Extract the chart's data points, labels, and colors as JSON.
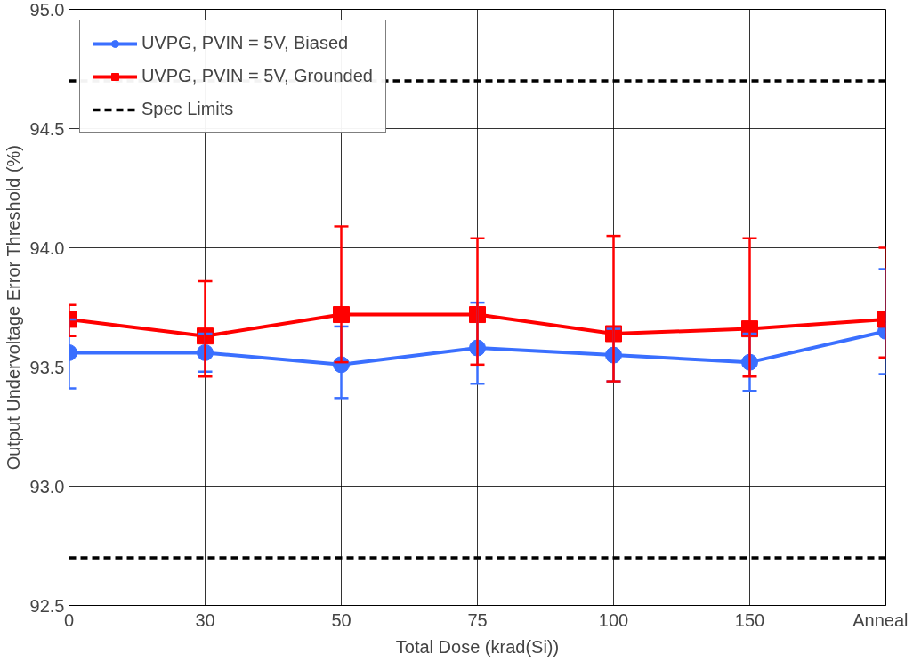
{
  "chart_data": {
    "type": "line",
    "xlabel": "Total Dose (krad(Si))",
    "ylabel": "Output Undervoltage Error Threshold (%)",
    "categories": [
      "0",
      "30",
      "50",
      "75",
      "100",
      "150",
      "Anneal"
    ],
    "series": [
      {
        "name": "UVPG, PVIN = 5V, Biased",
        "color": "#3a6fff",
        "marker": "circle",
        "values": [
          93.56,
          93.56,
          93.51,
          93.58,
          93.55,
          93.52,
          93.65
        ],
        "errors": [
          [
            93.41,
            93.7
          ],
          [
            93.48,
            93.64
          ],
          [
            93.37,
            93.67
          ],
          [
            93.43,
            93.77
          ],
          [
            93.44,
            93.66
          ],
          [
            93.4,
            93.64
          ],
          [
            93.47,
            93.91
          ]
        ]
      },
      {
        "name": "UVPG, PVIN = 5V, Grounded",
        "color": "#ff0000",
        "marker": "square",
        "values": [
          93.7,
          93.63,
          93.72,
          93.72,
          93.64,
          93.66,
          93.7
        ],
        "errors": [
          [
            93.63,
            93.76
          ],
          [
            93.46,
            93.86
          ],
          [
            93.52,
            94.09
          ],
          [
            93.51,
            94.04
          ],
          [
            93.44,
            94.05
          ],
          [
            93.46,
            94.04
          ],
          [
            93.54,
            94.0
          ]
        ]
      }
    ],
    "ref_lines": [
      {
        "axis": "y",
        "value": 94.7,
        "label": "Spec Limits",
        "color": "#000000",
        "line_style": "dashed"
      },
      {
        "axis": "y",
        "value": 92.7,
        "color": "#000000",
        "line_style": "dashed"
      }
    ],
    "ylim": [
      92.5,
      95.0
    ],
    "yticks": [
      92.5,
      {
        "value": 93,
        "label": "93.0"
      },
      93.5,
      {
        "value": 94,
        "label": "94.0"
      },
      94.5,
      {
        "value": 95,
        "label": "95.0"
      }
    ],
    "grid": true,
    "legend": "top left",
    "line_style": "solid"
  }
}
